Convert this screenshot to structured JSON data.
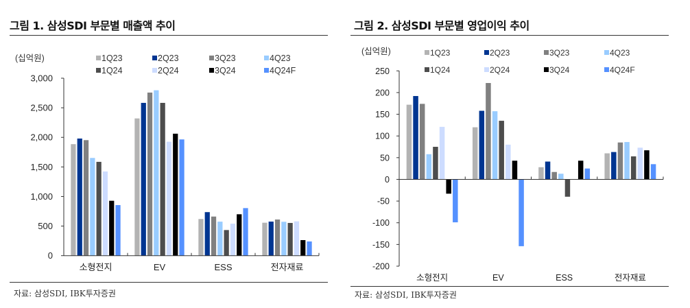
{
  "figures": [
    {
      "title": "그림 1. 삼성SDI 부문별 매출액 추이",
      "source": "자료: 삼성SDI, IBK투자증권"
    },
    {
      "title": "그림 2. 삼성SDI 부문별 영업이익 추이",
      "source": "자료: 삼성SDI, IBK투자증권"
    }
  ],
  "legend_colors": {
    "1Q23": "#b3b3b3",
    "2Q23": "#003591",
    "3Q23": "#808080",
    "4Q23": "#99ccff",
    "1Q24": "#4d4d4d",
    "2Q24": "#cddcff",
    "3Q24": "#000000",
    "4Q24F": "#5591ff"
  },
  "chart_data": [
    {
      "type": "bar",
      "title": "그림 1. 삼성SDI 부문별 매출액 추이",
      "unit_label": "(십억원)",
      "xlabel": "",
      "ylabel": "(십억원)",
      "ylim": [
        0,
        3000
      ],
      "yticks": [
        0,
        500,
        1000,
        1500,
        2000,
        2500,
        3000
      ],
      "ytick_labels": [
        "0",
        "500",
        "1,000",
        "1,500",
        "2,000",
        "2,500",
        "3,000"
      ],
      "grid": false,
      "legend_position": "top",
      "categories": [
        "소형전지",
        "EV",
        "ESS",
        "전자재료"
      ],
      "series": [
        {
          "name": "1Q23",
          "values": [
            1885,
            2320,
            620,
            557
          ]
        },
        {
          "name": "2Q23",
          "values": [
            1980,
            2583,
            736,
            576
          ]
        },
        {
          "name": "3Q23",
          "values": [
            1953,
            2757,
            661,
            611
          ]
        },
        {
          "name": "4Q23",
          "values": [
            1652,
            2796,
            575,
            573
          ]
        },
        {
          "name": "1Q24",
          "values": [
            1586,
            2583,
            433,
            553
          ]
        },
        {
          "name": "2Q24",
          "values": [
            1423,
            1926,
            541,
            580
          ]
        },
        {
          "name": "3Q24",
          "values": [
            928,
            2062,
            700,
            263
          ]
        },
        {
          "name": "4Q24F",
          "values": [
            855,
            1965,
            804,
            240
          ]
        }
      ]
    },
    {
      "type": "bar",
      "title": "그림 2. 삼성SDI 부문별 영업이익 추이",
      "unit_label": "(십억원)",
      "xlabel": "",
      "ylabel": "(십억원)",
      "ylim": [
        -200,
        250
      ],
      "yticks": [
        -200,
        -150,
        -100,
        -50,
        0,
        50,
        100,
        150,
        200,
        250
      ],
      "ytick_labels": [
        "-200",
        "-150",
        "-100",
        "-50",
        "0",
        "50",
        "100",
        "150",
        "200",
        "250"
      ],
      "grid": false,
      "legend_position": "top",
      "categories": [
        "소형전지",
        "EV",
        "ESS",
        "전자재료"
      ],
      "series": [
        {
          "name": "1Q23",
          "values": [
            172,
            120,
            28,
            60
          ]
        },
        {
          "name": "2Q23",
          "values": [
            192,
            158,
            41,
            63
          ]
        },
        {
          "name": "3Q23",
          "values": [
            174,
            222,
            17,
            85
          ]
        },
        {
          "name": "4Q23",
          "values": [
            58,
            157,
            13,
            86
          ]
        },
        {
          "name": "1Q24",
          "values": [
            75,
            135,
            -40,
            53
          ]
        },
        {
          "name": "2Q24",
          "values": [
            121,
            80,
            0,
            73
          ]
        },
        {
          "name": "3Q24",
          "values": [
            -33,
            43,
            43,
            67
          ]
        },
        {
          "name": "4Q24F",
          "values": [
            -99,
            -154,
            25,
            35
          ]
        }
      ]
    }
  ]
}
